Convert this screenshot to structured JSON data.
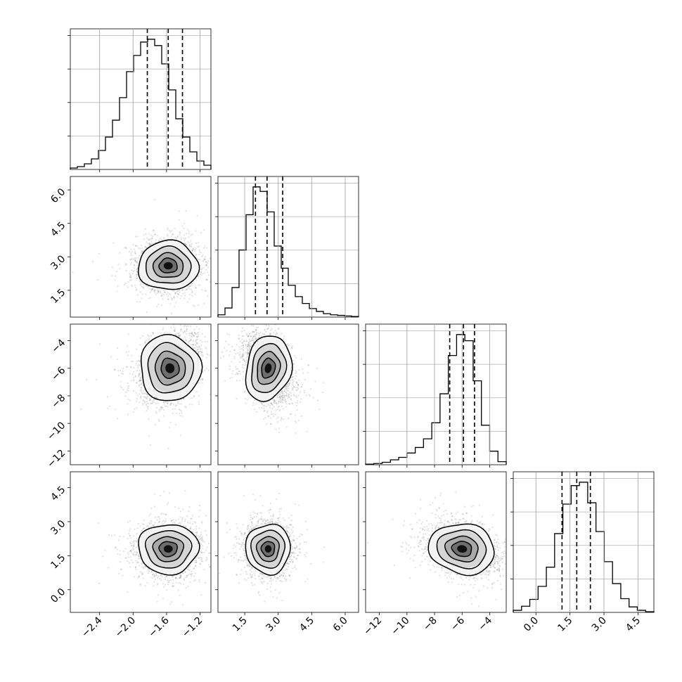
{
  "chart_data": {
    "type": "corner",
    "grid": true,
    "parameters": [
      {
        "range": [
          -2.75,
          -1.07
        ],
        "ticks": [
          -2.4,
          -2.0,
          -1.6,
          -1.2
        ],
        "tick_labels": [
          "−2.4",
          "−2.0",
          "−1.6",
          "−1.2"
        ],
        "quantiles": [
          -1.83,
          -1.58,
          -1.41
        ]
      },
      {
        "range": [
          0.3,
          6.6
        ],
        "ticks": [
          1.5,
          3.0,
          4.5,
          6.0
        ],
        "tick_labels": [
          "1.5",
          "3.0",
          "4.5",
          "6.0"
        ],
        "quantiles": [
          1.98,
          2.5,
          3.2
        ]
      },
      {
        "range": [
          -13.0,
          -2.8
        ],
        "ticks": [
          -12,
          -10,
          -8,
          -6,
          -4
        ],
        "tick_labels": [
          "−12",
          "−10",
          "−8",
          "−6",
          "−4"
        ],
        "quantiles": [
          -6.9,
          -5.9,
          -5.1
        ]
      },
      {
        "range": [
          -1.0,
          5.2
        ],
        "ticks": [
          0.0,
          1.5,
          3.0,
          4.5
        ],
        "tick_labels": [
          "0.0",
          "1.5",
          "3.0",
          "4.5"
        ],
        "quantiles": [
          1.15,
          1.8,
          2.4
        ]
      }
    ],
    "marginals": [
      {
        "hist": [
          0.2,
          0.4,
          0.8,
          1.5,
          2.7,
          4.6,
          7.0,
          10.2,
          13.9,
          16.2,
          18.1,
          18.5,
          17.6,
          15.0,
          11.3,
          7.2,
          4.6,
          2.5,
          1.2,
          0.6
        ],
        "hist_range": [
          -2.75,
          -1.07
        ]
      },
      {
        "hist": [
          0.4,
          1.6,
          5.2,
          11.8,
          18.0,
          22.9,
          22.1,
          18.5,
          12.5,
          8.6,
          5.6,
          3.6,
          2.4,
          1.5,
          1.0,
          0.6,
          0.4,
          0.3,
          0.2,
          0.1
        ],
        "hist_range": [
          0.3,
          6.6
        ]
      },
      {
        "hist": [
          0.1,
          0.2,
          0.4,
          0.8,
          1.2,
          1.9,
          2.8,
          4.2,
          6.8,
          11.5,
          17.7,
          21.1,
          20.1,
          13.6,
          6.4,
          2.2,
          0.5
        ],
        "hist_range": [
          -13.0,
          -2.8
        ]
      },
      {
        "hist": [
          0.3,
          0.9,
          1.9,
          3.8,
          6.6,
          11.5,
          15.8,
          18.5,
          19.0,
          16.0,
          11.8,
          7.4,
          4.2,
          2.0,
          0.8,
          0.3,
          0.1
        ],
        "hist_range": [
          -1.0,
          5.2
        ]
      }
    ],
    "pairs": [
      {
        "row": 1,
        "col": 0,
        "center": [
          -1.58,
          2.6
        ],
        "sd": [
          0.18,
          0.55
        ],
        "corr": 0.0
      },
      {
        "row": 2,
        "col": 0,
        "center": [
          -1.56,
          -6.0
        ],
        "sd": [
          0.18,
          1.2
        ],
        "corr": 0.3
      },
      {
        "row": 2,
        "col": 1,
        "center": [
          2.55,
          -6.0
        ],
        "sd": [
          0.5,
          1.2
        ],
        "corr": -0.35
      },
      {
        "row": 3,
        "col": 0,
        "center": [
          -1.58,
          1.8
        ],
        "sd": [
          0.18,
          0.55
        ],
        "corr": 0.0
      },
      {
        "row": 3,
        "col": 1,
        "center": [
          2.55,
          1.8
        ],
        "sd": [
          0.5,
          0.55
        ],
        "corr": -0.05
      },
      {
        "row": 3,
        "col": 2,
        "center": [
          -6.0,
          1.8
        ],
        "sd": [
          1.2,
          0.55
        ],
        "corr": -0.3
      }
    ]
  }
}
